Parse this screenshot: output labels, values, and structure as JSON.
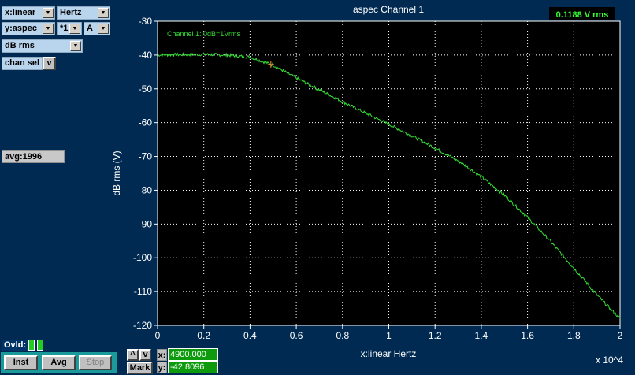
{
  "controls": {
    "x_scale": "x:linear",
    "x_unit": "Hertz",
    "y_mode": "y:aspec",
    "y_mult": "*1",
    "y_chan": "A",
    "y_unit": "dB rms",
    "chan_sel": "chan sel",
    "chan_sel_btn": "v",
    "avg": "avg:1996",
    "ovld": "Ovld:",
    "inst": "Inst",
    "avg_btn": "Avg",
    "stop": "Stop",
    "up": "^",
    "down": "v",
    "mark": "Mark",
    "x_label": "x:",
    "y_label": "y:",
    "x_val": "4900.000",
    "y_val": "-42.8096"
  },
  "readout": "0.1188 V rms",
  "chart_data": {
    "type": "line",
    "title": "aspec Channel 1",
    "annotation": "Channel 1: 0dB=1Vrms",
    "xlabel": "x:linear Hertz",
    "ylabel": "dB rms (V)",
    "x_multiplier": "x 10^4",
    "xlim": [
      0,
      20000
    ],
    "ylim": [
      -120,
      -30
    ],
    "grid": true,
    "x_ticks": [
      "0",
      "0.2",
      "0.4",
      "0.6",
      "0.8",
      "1",
      "1.2",
      "1.4",
      "1.6",
      "1.8",
      "2"
    ],
    "y_ticks": [
      "-30",
      "-40",
      "-50",
      "-60",
      "-70",
      "-80",
      "-90",
      "-100",
      "-110",
      "-120"
    ],
    "marker": {
      "x": 4900,
      "y": -42.8
    },
    "series": [
      {
        "color": "#33dd33",
        "x": [
          0,
          1000,
          2000,
          3000,
          4000,
          5000,
          6000,
          7000,
          8000,
          9000,
          10000,
          11000,
          12000,
          13000,
          14000,
          15000,
          16000,
          17000,
          18000,
          19000,
          20000
        ],
        "y": [
          -40,
          -39.9,
          -39.8,
          -40,
          -40.6,
          -43,
          -46.8,
          -50.3,
          -53.8,
          -57.2,
          -60.5,
          -63.9,
          -67.5,
          -71.3,
          -76,
          -81.5,
          -88,
          -95.2,
          -103,
          -111,
          -118
        ]
      }
    ]
  }
}
